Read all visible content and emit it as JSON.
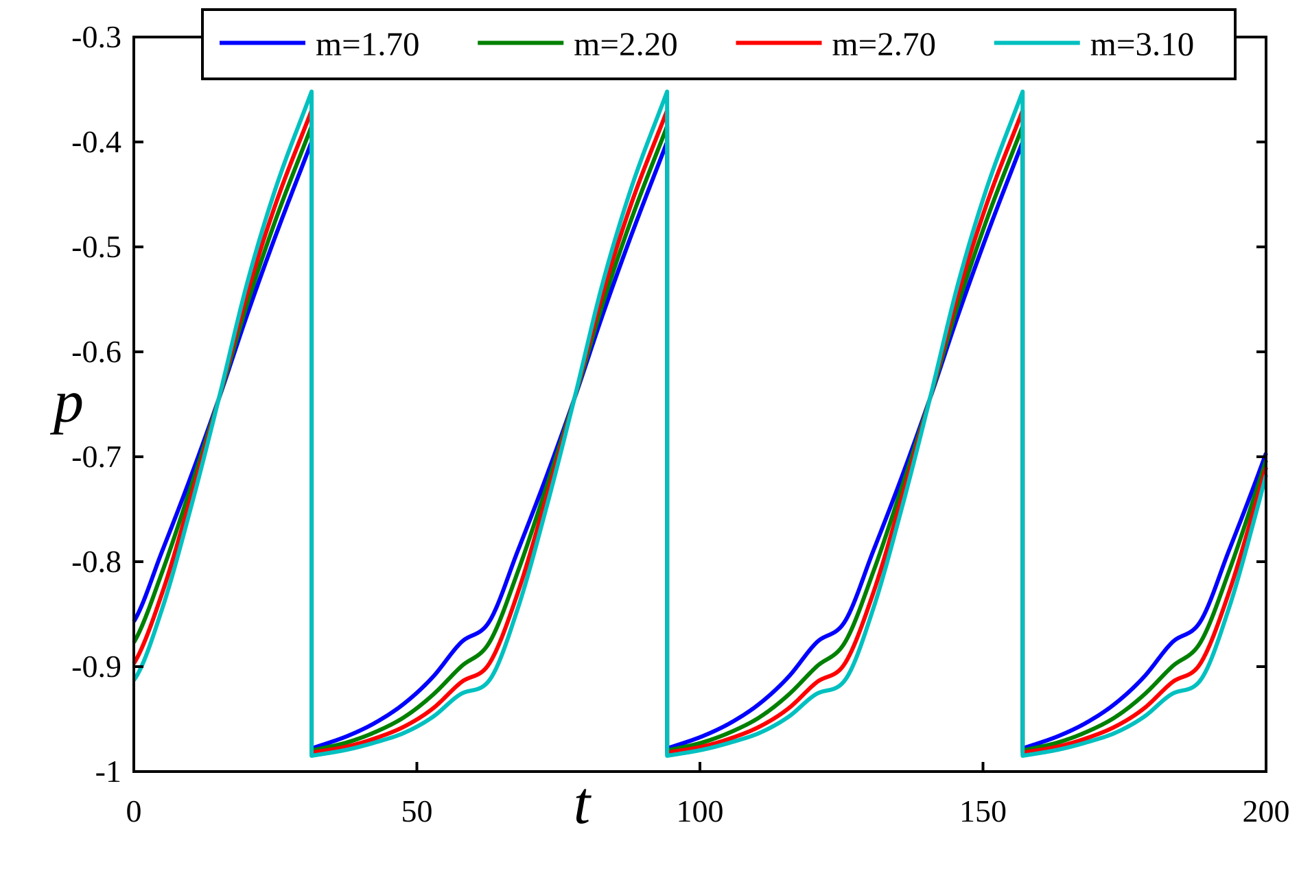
{
  "chart_data": {
    "type": "line",
    "title": "",
    "xlabel": "t",
    "ylabel": "p",
    "xlim": [
      0,
      200
    ],
    "ylim": [
      -1,
      -0.3
    ],
    "xticks": [
      0,
      50,
      100,
      150,
      200
    ],
    "xtick_labels": [
      "0",
      "50",
      "100",
      "150",
      "200"
    ],
    "yticks": [
      -0.3,
      -0.4,
      -0.5,
      -0.6,
      -0.7,
      -0.8,
      -0.9,
      -1
    ],
    "ytick_labels": [
      "-0.3",
      "-0.4",
      "-0.5",
      "-0.6",
      "-0.7",
      "-0.8",
      "-0.9",
      "-1"
    ],
    "grid": false,
    "legend_position": "top",
    "period": 62.8,
    "reset_times": [
      31.4,
      94.2,
      157
    ],
    "cycle_start": -31.4,
    "series": [
      {
        "name": "m=1.70",
        "color": "#0000ff",
        "x": [
          -31.4,
          -25,
          -20,
          -15,
          -10,
          -5,
          0,
          5,
          10,
          15,
          20,
          25,
          31.4
        ],
        "y": [
          -0.978,
          -0.966,
          -0.953,
          -0.935,
          -0.91,
          -0.877,
          -0.857,
          -0.79,
          -0.72,
          -0.645,
          -0.565,
          -0.49,
          -0.4
        ]
      },
      {
        "name": "m=2.20",
        "color": "#008000",
        "x": [
          -31.4,
          -25,
          -20,
          -15,
          -10,
          -5,
          0,
          5,
          10,
          15,
          20,
          25,
          31.4
        ],
        "y": [
          -0.98,
          -0.972,
          -0.962,
          -0.948,
          -0.927,
          -0.9,
          -0.877,
          -0.81,
          -0.73,
          -0.645,
          -0.555,
          -0.475,
          -0.385
        ]
      },
      {
        "name": "m=2.70",
        "color": "#ff0000",
        "x": [
          -31.4,
          -25,
          -20,
          -15,
          -10,
          -5,
          0,
          5,
          10,
          15,
          20,
          25,
          31.4
        ],
        "y": [
          -0.982,
          -0.976,
          -0.968,
          -0.957,
          -0.94,
          -0.915,
          -0.897,
          -0.83,
          -0.74,
          -0.645,
          -0.545,
          -0.46,
          -0.37
        ]
      },
      {
        "name": "m=3.10",
        "color": "#00c0c0",
        "x": [
          -31.4,
          -25,
          -20,
          -15,
          -10,
          -5,
          0,
          5,
          10,
          15,
          20,
          25,
          31.4
        ],
        "y": [
          -0.985,
          -0.979,
          -0.972,
          -0.963,
          -0.948,
          -0.926,
          -0.913,
          -0.845,
          -0.75,
          -0.645,
          -0.535,
          -0.445,
          -0.352
        ]
      }
    ]
  }
}
